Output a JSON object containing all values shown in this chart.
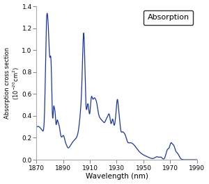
{
  "title": "Absorption",
  "xlabel": "Wavelength (nm)",
  "xlim": [
    1870,
    1990
  ],
  "ylim": [
    0,
    1.4
  ],
  "xticks": [
    1870,
    1890,
    1910,
    1930,
    1950,
    1970,
    1990
  ],
  "yticks": [
    0.0,
    0.2,
    0.4,
    0.6,
    0.8,
    1.0,
    1.2,
    1.4
  ],
  "line_color": "#1a35a8",
  "background_color": "#ffffff",
  "legend_label": "Absorption"
}
